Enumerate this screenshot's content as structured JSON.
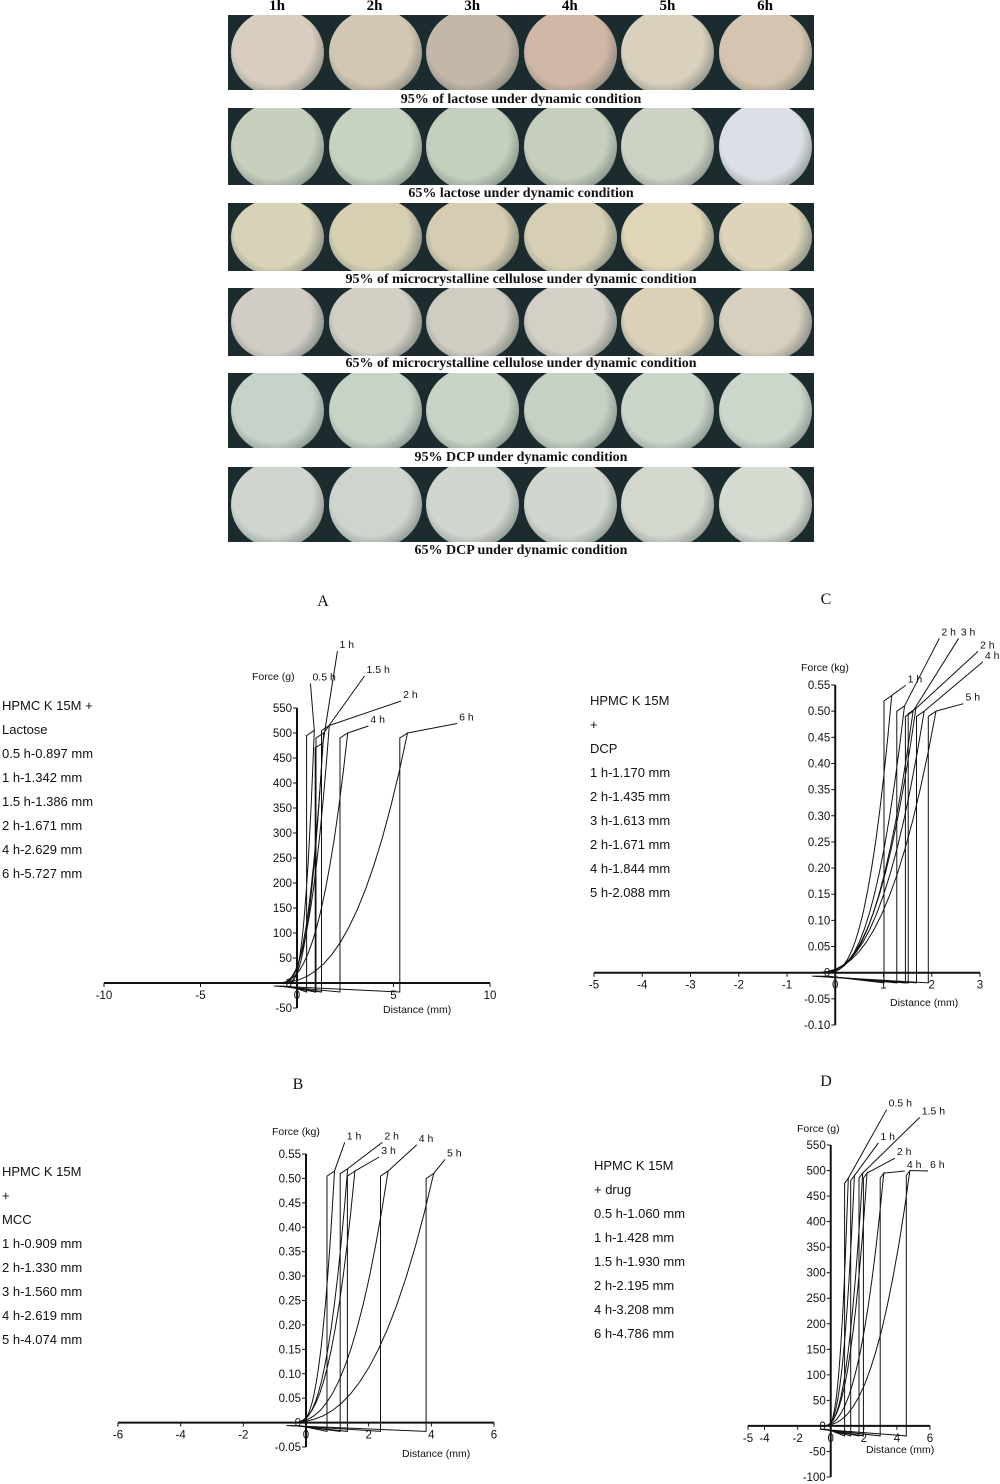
{
  "photos": {
    "headers": [
      "1h",
      "2h",
      "3h",
      "4h",
      "5h",
      "6h"
    ],
    "rows": [
      {
        "caption": "95% of lactose under dynamic condition",
        "colors": [
          "#d8cdbf",
          "#d3c6b2",
          "#c4b7a8",
          "#d0b7a6",
          "#d9d0bd",
          "#d5c5b0"
        ]
      },
      {
        "caption": "65% lactose under dynamic condition",
        "colors": [
          "#c7d0bd",
          "#c8d2c0",
          "#c5cfbd",
          "#c6cfbb",
          "#ccd3c4",
          "#dce0e6"
        ]
      },
      {
        "caption": "95% of microcrystalline cellulose under dynamic condition",
        "colors": [
          "#d8d2b8",
          "#d6cfb2",
          "#d5ccb1",
          "#d6cfb4",
          "#e0d4b9",
          "#ddd4b9"
        ]
      },
      {
        "caption": "65% of microcrystalline cellulose under dynamic condition",
        "colors": [
          "#d1cdc6",
          "#d3cfc4",
          "#d1ccc1",
          "#d4d0c6",
          "#dbd1b8",
          "#d8d0bf"
        ]
      },
      {
        "caption": "95% DCP under dynamic condition",
        "colors": [
          "#c7d2c8",
          "#c8d3c8",
          "#c9d3c6",
          "#c7d0c4",
          "#ccd5ca",
          "#cdd6cb"
        ]
      },
      {
        "caption": "65% DCP under dynamic condition",
        "colors": [
          "#d0d6cf",
          "#cfd5cd",
          "#d0d6cd",
          "#d1d7ce",
          "#d3d8cf",
          "#d6dbd2"
        ]
      }
    ]
  },
  "chart_data": [
    {
      "panel": "A",
      "type": "line",
      "ylabel": "Force (g)",
      "xlabel": "Distance (mm)",
      "xlim": [
        -10,
        10
      ],
      "ylim": [
        -50,
        550
      ],
      "xticks": [
        -10,
        -5,
        0,
        5,
        10
      ],
      "yticks": [
        -50,
        0,
        50,
        100,
        150,
        200,
        250,
        300,
        350,
        400,
        450,
        500,
        550
      ],
      "info": [
        "HPMC K 15M  +",
        "Lactose",
        "0.5 h-0.897 mm",
        "1 h-1.342 mm",
        "1.5 h-1.386 mm",
        "2 h-1.671 mm",
        "4 h-2.629 mm",
        "6 h-5.727 mm"
      ],
      "series": [
        {
          "name": "0.5 h",
          "peak": [
            0.897,
            505
          ],
          "label_at": [
            0.8,
            605
          ]
        },
        {
          "name": "1 h",
          "peak": [
            1.342,
            480
          ],
          "label_at": [
            2.2,
            670
          ]
        },
        {
          "name": "1.5 h",
          "peak": [
            1.386,
            500
          ],
          "label_at": [
            3.6,
            620
          ]
        },
        {
          "name": "2 h",
          "peak": [
            1.671,
            515
          ],
          "label_at": [
            5.5,
            570
          ]
        },
        {
          "name": "4 h",
          "peak": [
            2.629,
            500
          ],
          "label_at": [
            3.8,
            520
          ]
        },
        {
          "name": "6 h",
          "peak": [
            5.727,
            500
          ],
          "label_at": [
            8.4,
            525
          ]
        }
      ]
    },
    {
      "panel": "B",
      "type": "line",
      "ylabel": "Force (kg)",
      "xlabel": "Distance (mm)",
      "xlim": [
        -6,
        6
      ],
      "ylim": [
        -0.05,
        0.55
      ],
      "xticks": [
        -6,
        -4,
        -2,
        0,
        2,
        4,
        6
      ],
      "yticks": [
        -0.05,
        0,
        0.05,
        0.1,
        0.15,
        0.2,
        0.25,
        0.3,
        0.35,
        0.4,
        0.45,
        0.5,
        0.55
      ],
      "info": [
        "HPMC K 15M",
        "+",
        "MCC",
        "1 h-0.909 mm",
        "2 h-1.330 mm",
        "3 h-1.560 mm",
        "4 h-2.619 mm",
        "5 h-4.074 mm"
      ],
      "series": [
        {
          "name": "1 h",
          "peak": [
            0.909,
            0.515
          ],
          "label_at": [
            1.3,
            0.58
          ]
        },
        {
          "name": "2 h",
          "peak": [
            1.33,
            0.52
          ],
          "label_at": [
            2.5,
            0.58
          ]
        },
        {
          "name": "3 h",
          "peak": [
            1.56,
            0.515
          ],
          "label_at": [
            2.4,
            0.55
          ]
        },
        {
          "name": "4 h",
          "peak": [
            2.619,
            0.515
          ],
          "label_at": [
            3.6,
            0.575
          ]
        },
        {
          "name": "5 h",
          "peak": [
            4.074,
            0.51
          ],
          "label_at": [
            4.5,
            0.545
          ]
        }
      ]
    },
    {
      "panel": "C",
      "type": "line",
      "ylabel": "Force (kg)",
      "xlabel": "Distance (mm)",
      "xlim": [
        -5,
        3
      ],
      "ylim": [
        -0.1,
        0.55
      ],
      "xticks": [
        -5,
        -4,
        -3,
        -2,
        -1,
        0,
        1,
        2,
        3
      ],
      "yticks": [
        -0.1,
        -0.05,
        0,
        0.05,
        0.1,
        0.15,
        0.2,
        0.25,
        0.3,
        0.35,
        0.4,
        0.45,
        0.5,
        0.55
      ],
      "info": [
        "HPMC K 15M",
        "+",
        "DCP",
        "1 h-1.170 mm",
        "2 h-1.435 mm",
        "3 h-1.613 mm",
        "2 h-1.671 mm",
        "4 h-1.844 mm",
        "5 h-2.088 mm"
      ],
      "series": [
        {
          "name": "1 h",
          "peak": [
            1.17,
            0.53
          ],
          "label_at": [
            1.5,
            0.555
          ]
        },
        {
          "name": "2 h",
          "peak": [
            1.435,
            0.51
          ],
          "label_at": [
            2.2,
            0.645
          ]
        },
        {
          "name": "3 h",
          "peak": [
            1.613,
            0.5
          ],
          "label_at": [
            2.6,
            0.645
          ]
        },
        {
          "name": "2 h",
          "peak": [
            1.671,
            0.505
          ],
          "label_at": [
            3.0,
            0.62
          ]
        },
        {
          "name": "4 h",
          "peak": [
            1.844,
            0.5
          ],
          "label_at": [
            3.1,
            0.6
          ]
        },
        {
          "name": "5 h",
          "peak": [
            2.088,
            0.5
          ],
          "label_at": [
            2.7,
            0.52
          ]
        }
      ]
    },
    {
      "panel": "D",
      "type": "line",
      "ylabel": "Force (g)",
      "xlabel": "Distance (mm)",
      "xlim": [
        -5,
        6
      ],
      "ylim": [
        -100,
        550
      ],
      "xticks": [
        -5,
        -4,
        -2,
        0,
        2,
        4,
        6
      ],
      "yticks": [
        -100,
        -50,
        0,
        50,
        100,
        150,
        200,
        250,
        300,
        350,
        400,
        450,
        500,
        550
      ],
      "info": [
        "HPMC K 15M",
        "+ drug",
        "0.5 h-1.060 mm",
        "1 h-1.428 mm",
        "1.5 h-1.930 mm",
        "2 h-2.195 mm",
        "4 h-3.208 mm",
        "6 h-4.786 mm"
      ],
      "series": [
        {
          "name": "0.5 h",
          "peak": [
            1.06,
            485
          ],
          "label_at": [
            3.5,
            625
          ]
        },
        {
          "name": "1 h",
          "peak": [
            1.428,
            490
          ],
          "label_at": [
            3.0,
            560
          ]
        },
        {
          "name": "1.5 h",
          "peak": [
            1.93,
            495
          ],
          "label_at": [
            5.5,
            610
          ]
        },
        {
          "name": "2 h",
          "peak": [
            2.195,
            495
          ],
          "label_at": [
            4.0,
            530
          ]
        },
        {
          "name": "4 h",
          "peak": [
            3.208,
            495
          ],
          "label_at": [
            4.6,
            505
          ]
        },
        {
          "name": "6 h",
          "peak": [
            4.786,
            500
          ],
          "label_at": [
            6.0,
            505
          ]
        }
      ]
    }
  ]
}
